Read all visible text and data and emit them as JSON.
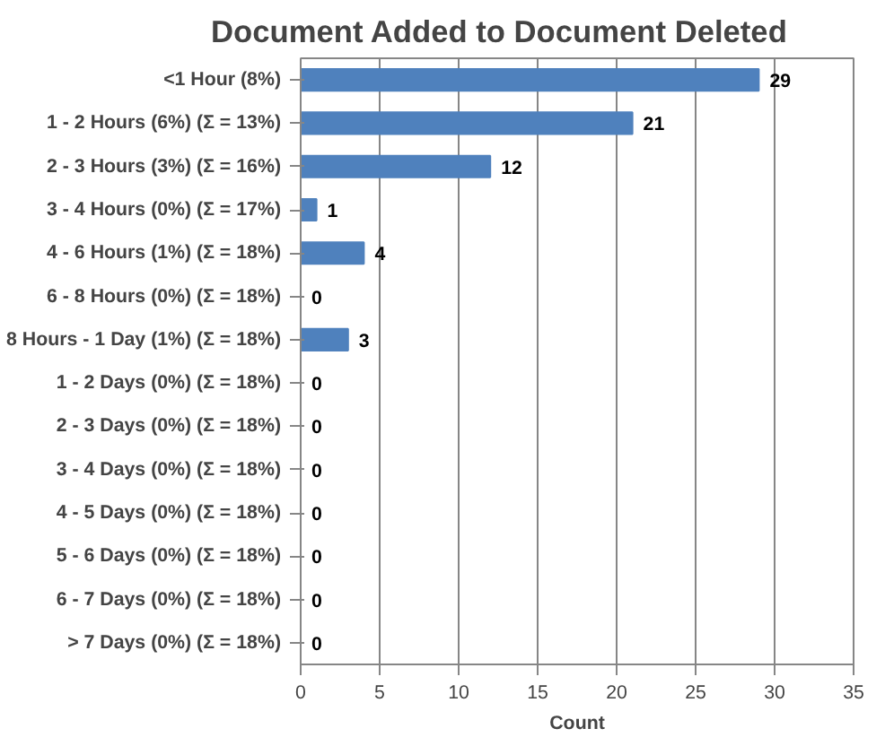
{
  "chart_data": {
    "type": "bar",
    "orientation": "horizontal",
    "title": "Document Added to Document Deleted",
    "xlabel": "Count",
    "categories": [
      "<1 Hour (8%)",
      "1 - 2 Hours (6%) (Σ = 13%)",
      "2 - 3 Hours (3%) (Σ = 16%)",
      "3 - 4 Hours (0%) (Σ = 17%)",
      "4 - 6 Hours (1%) (Σ = 18%)",
      "6 - 8 Hours (0%) (Σ = 18%)",
      "8 Hours - 1 Day (1%) (Σ = 18%)",
      "1 - 2 Days (0%) (Σ = 18%)",
      "2 - 3 Days (0%) (Σ = 18%)",
      "3 - 4 Days (0%) (Σ = 18%)",
      "4 - 5 Days (0%) (Σ = 18%)",
      "5 - 6 Days (0%) (Σ = 18%)",
      "6 - 7 Days (0%) (Σ = 18%)",
      "> 7 Days (0%) (Σ = 18%)"
    ],
    "values": [
      29,
      21,
      12,
      1,
      4,
      0,
      3,
      0,
      0,
      0,
      0,
      0,
      0,
      0
    ],
    "color": "#4f81bd",
    "data_labels": true,
    "xlim": [
      0,
      35
    ],
    "xticks": [
      0,
      5,
      10,
      15,
      20,
      25,
      30,
      35
    ],
    "grid": "x"
  }
}
